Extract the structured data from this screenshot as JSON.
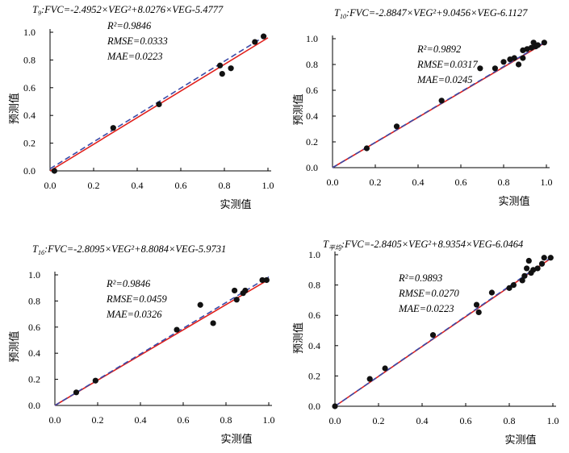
{
  "chart_data": [
    {
      "type": "scatter",
      "title_prefix": "T",
      "title_sub": "9",
      "title_eq": ":FVC=-2.4952×VEG²+8.0276×VEG-5.4777",
      "xlabel": "实测值",
      "ylabel": "预测值",
      "xlim": [
        0,
        1
      ],
      "ylim": [
        0,
        1
      ],
      "xticks": [
        "0.0",
        "0.2",
        "0.4",
        "0.6",
        "0.8",
        "1.0"
      ],
      "yticks": [
        "0.0",
        "0.2",
        "0.4",
        "0.6",
        "0.8",
        "1.0"
      ],
      "stats": [
        "R²=0.9846",
        "RMSE=0.0333",
        "MAE=0.0223"
      ],
      "points": [
        [
          0.02,
          0.0
        ],
        [
          0.29,
          0.31
        ],
        [
          0.5,
          0.48
        ],
        [
          0.78,
          0.76
        ],
        [
          0.79,
          0.7
        ],
        [
          0.83,
          0.74
        ],
        [
          0.94,
          0.93
        ],
        [
          0.98,
          0.97
        ]
      ],
      "fit_line": [
        [
          0.0,
          0.015
        ],
        [
          1.0,
          0.985
        ]
      ],
      "reference_line": [
        [
          0.0,
          0.0
        ],
        [
          1.0,
          0.96
        ]
      ],
      "colors": {
        "fit": "#3a4aa8",
        "reference": "#e0201c",
        "points": "#111111"
      }
    },
    {
      "type": "scatter",
      "title_prefix": "T",
      "title_sub": "10",
      "title_eq": ":FVC=-2.8847×VEG²+9.0456×VEG-6.1127",
      "xlabel": "实测值",
      "ylabel": "预测值",
      "xlim": [
        0,
        1
      ],
      "ylim": [
        0,
        1
      ],
      "xticks": [
        "0.0",
        "0.2",
        "0.4",
        "0.6",
        "0.8",
        "1.0"
      ],
      "yticks": [
        "0.0",
        "0.2",
        "0.4",
        "0.6",
        "0.8",
        "1.0"
      ],
      "stats": [
        "R²=0.9892",
        "RMSE=0.0317",
        "MAE=0.0245"
      ],
      "points": [
        [
          0.16,
          0.15
        ],
        [
          0.3,
          0.32
        ],
        [
          0.51,
          0.52
        ],
        [
          0.69,
          0.77
        ],
        [
          0.76,
          0.77
        ],
        [
          0.8,
          0.82
        ],
        [
          0.83,
          0.84
        ],
        [
          0.85,
          0.85
        ],
        [
          0.87,
          0.8
        ],
        [
          0.89,
          0.85
        ],
        [
          0.89,
          0.91
        ],
        [
          0.91,
          0.92
        ],
        [
          0.93,
          0.93
        ],
        [
          0.94,
          0.97
        ],
        [
          0.95,
          0.94
        ],
        [
          0.96,
          0.95
        ],
        [
          0.99,
          0.97
        ]
      ],
      "fit_line": [
        [
          0.0,
          0.0
        ],
        [
          1.0,
          0.98
        ]
      ],
      "reference_line": [
        [
          0.0,
          0.0
        ],
        [
          1.0,
          0.975
        ]
      ],
      "colors": {
        "fit": "#3a4aa8",
        "reference": "#e0201c",
        "points": "#111111"
      }
    },
    {
      "type": "scatter",
      "title_prefix": "T",
      "title_sub": "16",
      "title_eq": ":FVC=-2.8095×VEG²+8.8084×VEG-5.9731",
      "xlabel": "实测值",
      "ylabel": "预测值",
      "xlim": [
        0,
        1
      ],
      "ylim": [
        0,
        1
      ],
      "xticks": [
        "0.0",
        "0.2",
        "0.4",
        "0.6",
        "0.8",
        "1.0"
      ],
      "yticks": [
        "0.0",
        "0.2",
        "0.4",
        "0.6",
        "0.8",
        "1.0"
      ],
      "stats": [
        "R²=0.9846",
        "RMSE=0.0459",
        "MAE=0.0326"
      ],
      "points": [
        [
          0.1,
          0.1
        ],
        [
          0.19,
          0.19
        ],
        [
          0.57,
          0.58
        ],
        [
          0.68,
          0.77
        ],
        [
          0.74,
          0.63
        ],
        [
          0.84,
          0.88
        ],
        [
          0.85,
          0.81
        ],
        [
          0.88,
          0.86
        ],
        [
          0.89,
          0.88
        ],
        [
          0.97,
          0.96
        ],
        [
          0.99,
          0.96
        ]
      ],
      "fit_line": [
        [
          0.0,
          0.0
        ],
        [
          1.0,
          0.985
        ]
      ],
      "reference_line": [
        [
          0.0,
          0.0
        ],
        [
          1.0,
          0.965
        ]
      ],
      "colors": {
        "fit": "#3a4aa8",
        "reference": "#e0201c",
        "points": "#111111"
      }
    },
    {
      "type": "scatter",
      "title_prefix": "T",
      "title_sub": "平均",
      "title_eq": ":FVC=-2.8405×VEG²+8.9354×VEG-6.0464",
      "xlabel": "实测值",
      "ylabel": "预测值",
      "xlim": [
        0,
        1
      ],
      "ylim": [
        0,
        1
      ],
      "xticks": [
        "0.0",
        "0.2",
        "0.4",
        "0.6",
        "0.8",
        "1.0"
      ],
      "yticks": [
        "0.0",
        "0.2",
        "0.4",
        "0.6",
        "0.8",
        "1.0"
      ],
      "stats": [
        "R²=0.9893",
        "RMSE=0.0270",
        "MAE=0.0223"
      ],
      "points": [
        [
          0.0,
          0.0
        ],
        [
          0.16,
          0.18
        ],
        [
          0.23,
          0.25
        ],
        [
          0.45,
          0.47
        ],
        [
          0.65,
          0.67
        ],
        [
          0.66,
          0.62
        ],
        [
          0.72,
          0.75
        ],
        [
          0.8,
          0.78
        ],
        [
          0.82,
          0.8
        ],
        [
          0.86,
          0.83
        ],
        [
          0.87,
          0.86
        ],
        [
          0.88,
          0.91
        ],
        [
          0.89,
          0.96
        ],
        [
          0.9,
          0.88
        ],
        [
          0.91,
          0.9
        ],
        [
          0.93,
          0.91
        ],
        [
          0.95,
          0.94
        ],
        [
          0.96,
          0.98
        ],
        [
          0.99,
          0.98
        ]
      ],
      "fit_line": [
        [
          0.0,
          0.0
        ],
        [
          1.0,
          0.99
        ]
      ],
      "reference_line": [
        [
          0.0,
          0.0
        ],
        [
          1.0,
          0.985
        ]
      ],
      "colors": {
        "fit": "#3a4aa8",
        "reference": "#e0201c",
        "points": "#111111"
      }
    }
  ]
}
